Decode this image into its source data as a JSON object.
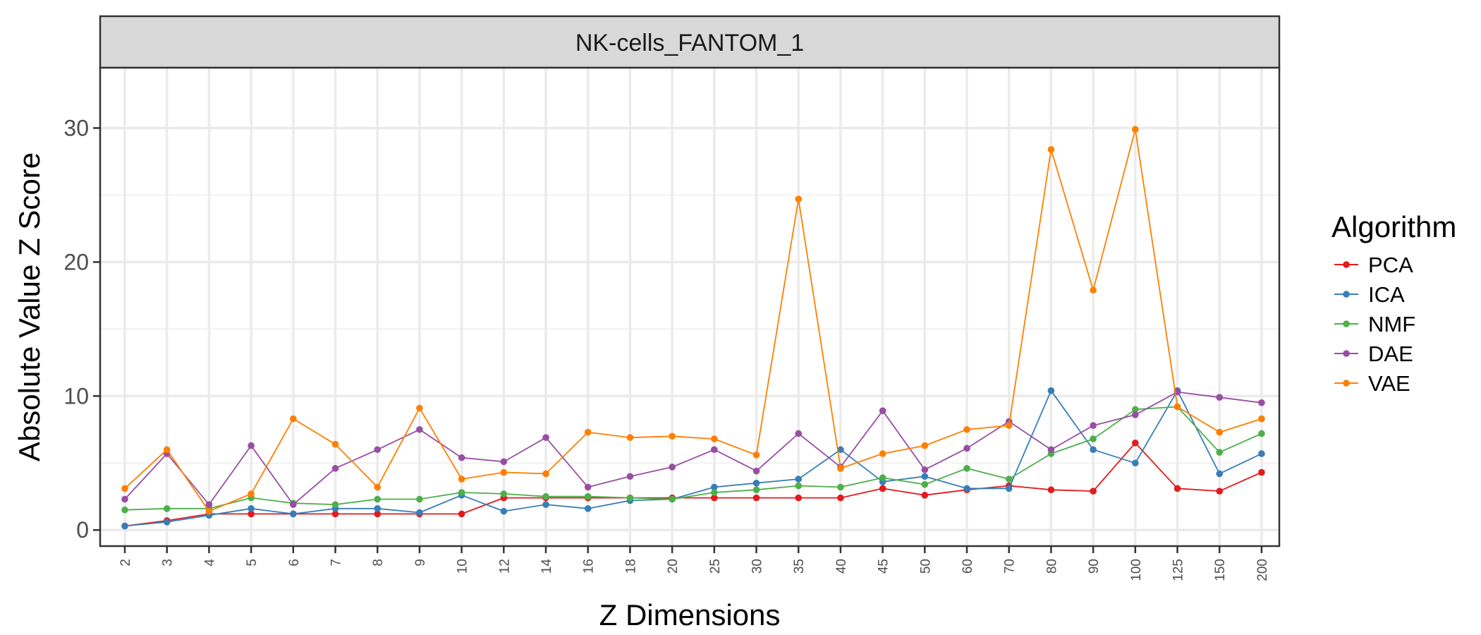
{
  "chart_data": {
    "type": "line",
    "facet_title": "NK-cells_FANTOM_1",
    "xlabel": "Z Dimensions",
    "ylabel": "Absolute Value Z Score",
    "categories": [
      "2",
      "3",
      "4",
      "5",
      "6",
      "7",
      "8",
      "9",
      "10",
      "12",
      "14",
      "16",
      "18",
      "20",
      "25",
      "30",
      "35",
      "40",
      "45",
      "50",
      "60",
      "70",
      "80",
      "90",
      "100",
      "125",
      "150",
      "200"
    ],
    "ylim": [
      -1.2,
      34.5
    ],
    "yticks": [
      0,
      10,
      20,
      30
    ],
    "grid": true,
    "legend": {
      "title": "Algorithm",
      "position": "right"
    },
    "series": [
      {
        "name": "PCA",
        "color": "#e41a1c",
        "values": [
          0.3,
          0.7,
          1.2,
          1.2,
          1.2,
          1.2,
          1.2,
          1.2,
          1.2,
          2.4,
          2.4,
          2.4,
          2.4,
          2.4,
          2.4,
          2.4,
          2.4,
          2.4,
          3.1,
          2.6,
          3.0,
          3.3,
          3.0,
          2.9,
          6.5,
          3.1,
          2.9,
          4.3
        ]
      },
      {
        "name": "ICA",
        "color": "#377eb8",
        "values": [
          0.3,
          0.6,
          1.1,
          1.6,
          1.2,
          1.6,
          1.6,
          1.3,
          2.6,
          1.4,
          1.9,
          1.6,
          2.2,
          2.3,
          3.2,
          3.5,
          3.8,
          6.0,
          3.6,
          4.0,
          3.1,
          3.1,
          10.4,
          6.0,
          5.0,
          10.4,
          4.2,
          5.7
        ]
      },
      {
        "name": "NMF",
        "color": "#4daf4a",
        "values": [
          1.5,
          1.6,
          1.6,
          2.4,
          2.0,
          1.9,
          2.3,
          2.3,
          2.8,
          2.7,
          2.5,
          2.5,
          2.4,
          2.3,
          2.8,
          3.0,
          3.3,
          3.2,
          3.9,
          3.4,
          4.6,
          3.8,
          5.7,
          6.8,
          9.0,
          9.2,
          5.8,
          7.2
        ]
      },
      {
        "name": "DAE",
        "color": "#984ea3",
        "values": [
          2.3,
          5.7,
          1.9,
          6.3,
          1.9,
          4.6,
          6.0,
          7.5,
          5.4,
          5.1,
          6.9,
          3.2,
          4.0,
          4.7,
          6.0,
          4.4,
          7.2,
          4.7,
          8.9,
          4.5,
          6.1,
          8.1,
          6.0,
          7.8,
          8.6,
          10.3,
          9.9,
          9.5
        ]
      },
      {
        "name": "VAE",
        "color": "#ff7f00",
        "values": [
          3.1,
          6.0,
          1.4,
          2.7,
          8.3,
          6.4,
          3.2,
          9.1,
          3.8,
          4.3,
          4.2,
          7.3,
          6.9,
          7.0,
          6.8,
          5.6,
          24.7,
          4.6,
          5.7,
          6.3,
          7.5,
          7.8,
          28.4,
          17.9,
          29.9,
          9.2,
          7.3,
          8.3
        ]
      }
    ]
  }
}
